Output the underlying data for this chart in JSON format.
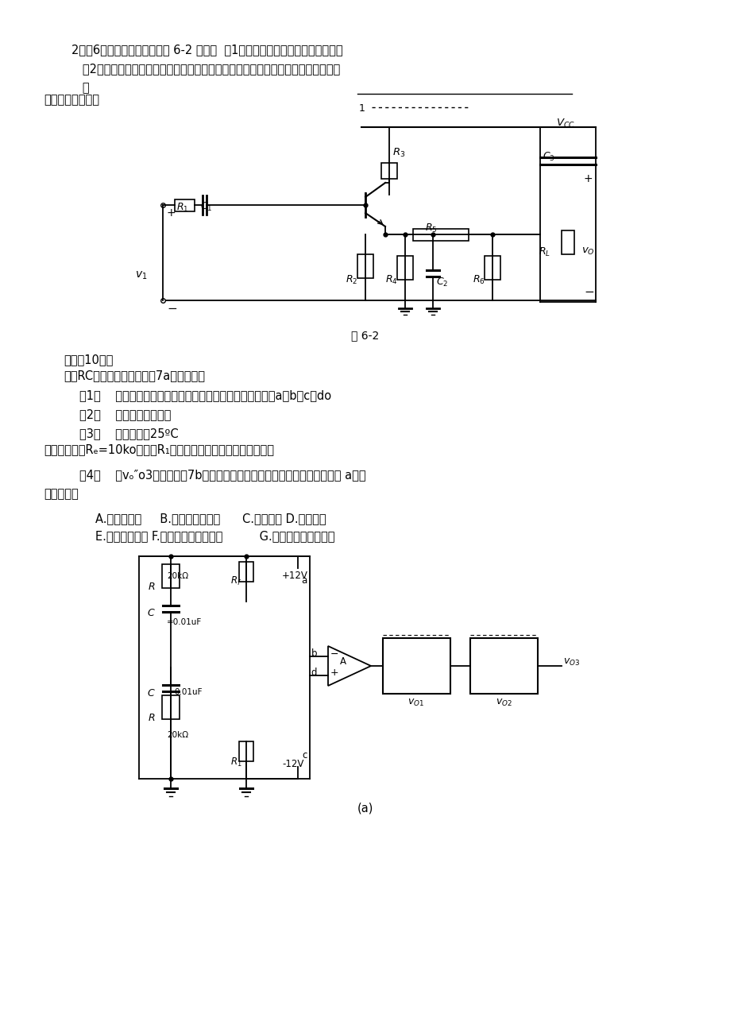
{
  "page_bg": "#ffffff",
  "text_color": "#000000",
  "fig_caption1": "图 6-2",
  "fig_caption2": "(a)",
  "line1": "2．（6分）反馈放大电路如图 6-2 所示。  （1）判断电路的反馈阻态（类型）；",
  "line2": "（2）电路引入反馈后，对电路的输入电阻将产生什么影响？是稳定了输出电压，还",
  "line3": "是",
  "line4": "稳定了输出电流？",
  "line5": "七、（10分）",
  "line6": "桥式RC正弦波振荡电路如图7a左侧所示。",
  "line7": "（1）    为使电路能产生振荡，根据相位平衡条件，正确连接a、b、c、do",
  "line8": "（2）    振荡频率是多少？",
  "line9": "（3）    若常温下（25ºC",
  "line10": "），热敏电阻Rₑ=10ko。，则R₁的应怎么样取值才能使电路起振？",
  "line11": "（4）    当vₒ″o3的波形如图7b所示时，从下列答案中选择正确的答案填入图 a相应",
  "line12": "的方框中：",
  "line13": "A.电压路随器     B.正弦波振荡电路      C.微分电路 D.积分电路",
  "line14": "E.单门限比较器 F.同相输入迟滞比较器          G.反相输入迟滞比较器"
}
